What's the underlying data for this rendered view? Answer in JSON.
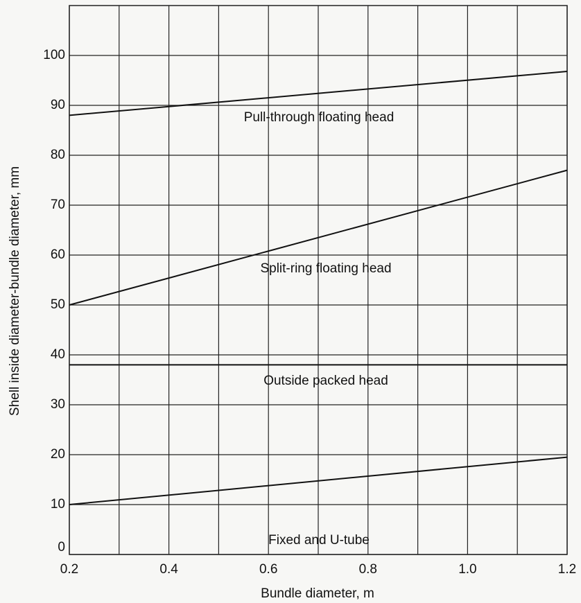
{
  "chart_data": {
    "type": "line",
    "xlabel": "Bundle diameter, m",
    "ylabel": "Shell inside diameter-bundle diameter, mm",
    "xlim": [
      0.2,
      1.2
    ],
    "ylim": [
      0,
      110
    ],
    "xticks": [
      0.2,
      0.4,
      0.6,
      0.8,
      {
        "value": 1,
        "label": "1.0"
      },
      1.2
    ],
    "xminor": [
      0.3,
      0.5,
      0.7,
      0.9,
      1.1
    ],
    "yticks": [
      0,
      10,
      20,
      30,
      40,
      50,
      60,
      70,
      80,
      90,
      100
    ],
    "grid": true,
    "series": [
      {
        "name": "Pull-through floating head",
        "color": "#111111",
        "x": [
          0.2,
          1.2
        ],
        "values": [
          88,
          96.8
        ]
      },
      {
        "name": "Split-ring floating head",
        "color": "#111111",
        "x": [
          0.2,
          1.2
        ],
        "values": [
          50,
          77
        ]
      },
      {
        "name": "Outside packed head",
        "color": "#111111",
        "x": [
          0.2,
          1.2
        ],
        "values": [
          38,
          38
        ]
      },
      {
        "name": "Fixed and U-tube",
        "color": "#111111",
        "x": [
          0.2,
          1.2
        ],
        "values": [
          10,
          19.5
        ]
      }
    ]
  }
}
